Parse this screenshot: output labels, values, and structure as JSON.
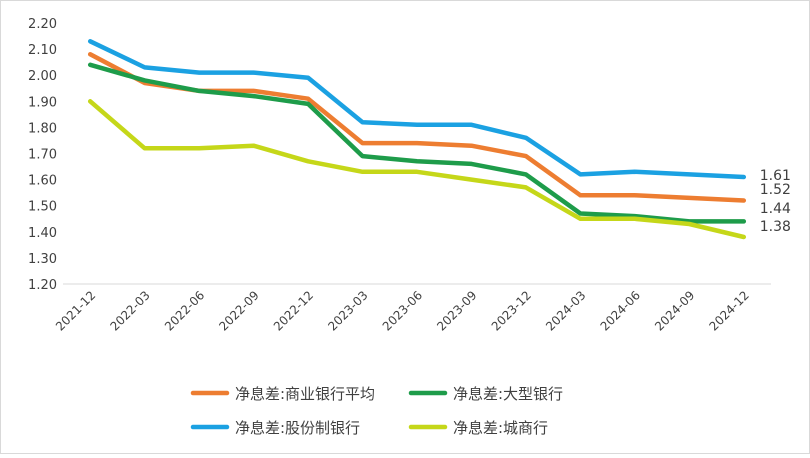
{
  "chart_data": {
    "type": "line",
    "title": "",
    "xlabel": "",
    "ylabel": "",
    "ylim": [
      1.2,
      2.2
    ],
    "y_ticks": [
      "2.20",
      "2.10",
      "2.00",
      "1.90",
      "1.80",
      "1.70",
      "1.60",
      "1.50",
      "1.40",
      "1.30",
      "1.20"
    ],
    "categories": [
      "2021-12",
      "2022-03",
      "2022-06",
      "2022-09",
      "2022-12",
      "2023-03",
      "2023-06",
      "2023-09",
      "2023-12",
      "2024-03",
      "2024-06",
      "2024-09",
      "2024-12"
    ],
    "grid": false,
    "legend_position": "bottom",
    "series": [
      {
        "name": "净息差:商业银行平均",
        "color": "#ED7D31",
        "values": [
          2.08,
          1.97,
          1.94,
          1.94,
          1.91,
          1.74,
          1.74,
          1.73,
          1.69,
          1.54,
          1.54,
          1.53,
          1.52
        ],
        "end_label": "1.52"
      },
      {
        "name": "净息差:大型银行",
        "color": "#1E9C4A",
        "values": [
          2.04,
          1.98,
          1.94,
          1.92,
          1.89,
          1.69,
          1.67,
          1.66,
          1.62,
          1.47,
          1.46,
          1.44,
          1.44
        ],
        "end_label": "1.44"
      },
      {
        "name": "净息差:股份制银行",
        "color": "#1BA1E2",
        "values": [
          2.13,
          2.03,
          2.01,
          2.01,
          1.99,
          1.82,
          1.81,
          1.81,
          1.76,
          1.62,
          1.63,
          1.62,
          1.61
        ],
        "end_label": "1.61"
      },
      {
        "name": "净息差:城商行",
        "color": "#C5D719",
        "values": [
          1.9,
          1.72,
          1.72,
          1.73,
          1.67,
          1.63,
          1.63,
          1.6,
          1.57,
          1.45,
          1.45,
          1.43,
          1.38
        ],
        "end_label": "1.38"
      }
    ]
  }
}
